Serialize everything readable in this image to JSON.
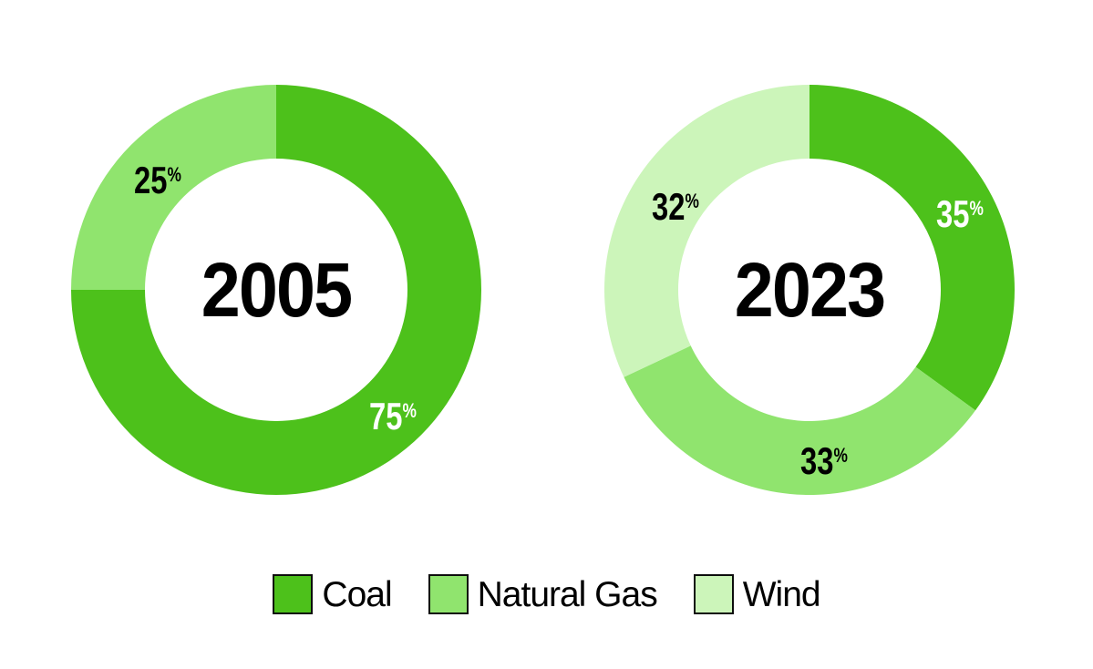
{
  "chart_data": {
    "type": "pie",
    "variant": "donut-pair",
    "units": "%",
    "layout": {
      "start_angle": "top",
      "direction": "clockwise",
      "hole_ratio": 0.64,
      "legend_position": "bottom-center"
    },
    "charts": [
      {
        "center_label": "2005",
        "slices": [
          {
            "name": "Coal",
            "value": 75,
            "display": "75",
            "suffix": "%",
            "color": "#4DC11B",
            "label_color": "#FFFFFF"
          },
          {
            "name": "Natural Gas",
            "value": 25,
            "display": "25",
            "suffix": "%",
            "color": "#90E46E",
            "label_color": "#000000"
          }
        ]
      },
      {
        "center_label": "2023",
        "slices": [
          {
            "name": "Coal",
            "value": 35,
            "display": "35",
            "suffix": "%",
            "color": "#4DC11B",
            "label_color": "#FFFFFF"
          },
          {
            "name": "Natural Gas",
            "value": 33,
            "display": "33",
            "suffix": "%",
            "color": "#90E46E",
            "label_color": "#000000"
          },
          {
            "name": "Wind",
            "value": 32,
            "display": "32",
            "suffix": "%",
            "color": "#CCF5BA",
            "label_color": "#000000"
          }
        ]
      }
    ],
    "legend": [
      {
        "label": "Coal",
        "color": "#4DC11B"
      },
      {
        "label": "Natural Gas",
        "color": "#90E46E"
      },
      {
        "label": "Wind",
        "color": "#CCF5BA"
      }
    ]
  }
}
